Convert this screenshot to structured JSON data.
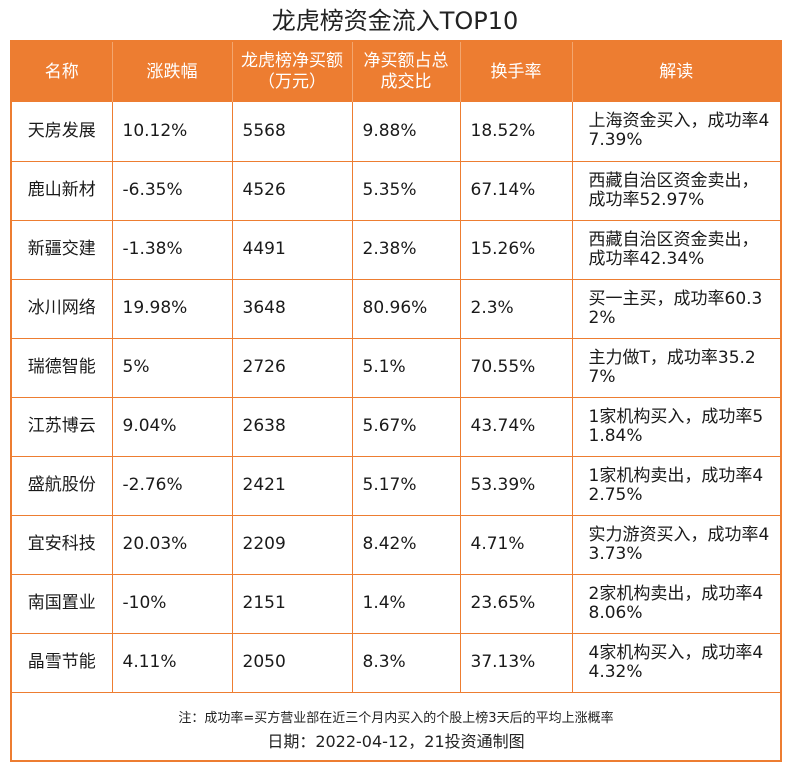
{
  "title": "龙虎榜资金流入TOP10",
  "columns": [
    "名称",
    "涨跌幅",
    "龙虎榜净买额（万元）",
    "净买额占总成交比",
    "换手率",
    "解读"
  ],
  "rows": [
    [
      "天房发展",
      "10.12%",
      "5568",
      "9.88%",
      "18.52%",
      "上海资金买入，成功率47.39%"
    ],
    [
      "鹿山新材",
      "-6.35%",
      "4526",
      "5.35%",
      "67.14%",
      "西藏自治区资金卖出，成功率52.97%"
    ],
    [
      "新疆交建",
      "-1.38%",
      "4491",
      "2.38%",
      "15.26%",
      "西藏自治区资金卖出，成功率42.34%"
    ],
    [
      "冰川网络",
      "19.98%",
      "3648",
      "80.96%",
      "2.3%",
      "买一主买，成功率60.32%"
    ],
    [
      "瑞德智能",
      "5%",
      "2726",
      "5.1%",
      "70.55%",
      "主力做T，成功率35.27%"
    ],
    [
      "江苏博云",
      "9.04%",
      "2638",
      "5.67%",
      "43.74%",
      "1家机构买入，成功率51.84%"
    ],
    [
      "盛航股份",
      "-2.76%",
      "2421",
      "5.17%",
      "53.39%",
      "1家机构卖出，成功率42.75%"
    ],
    [
      "宜安科技",
      "20.03%",
      "2209",
      "8.42%",
      "4.71%",
      "实力游资买入，成功率43.73%"
    ],
    [
      "南国置业",
      "-10%",
      "2151",
      "1.4%",
      "23.65%",
      "2家机构卖出，成功率48.06%"
    ],
    [
      "晶雪节能",
      "4.11%",
      "2050",
      "8.3%",
      "37.13%",
      "4家机构买入，成功率44.32%"
    ]
  ],
  "note": "注：成功率=买方营业部在近三个月内买入的个股上榜3天后的平均上涨概率",
  "date": "日期：2022-04-12，21投资通制图",
  "colors": {
    "accent": "#ed7d31",
    "header_text": "#ffffff"
  }
}
